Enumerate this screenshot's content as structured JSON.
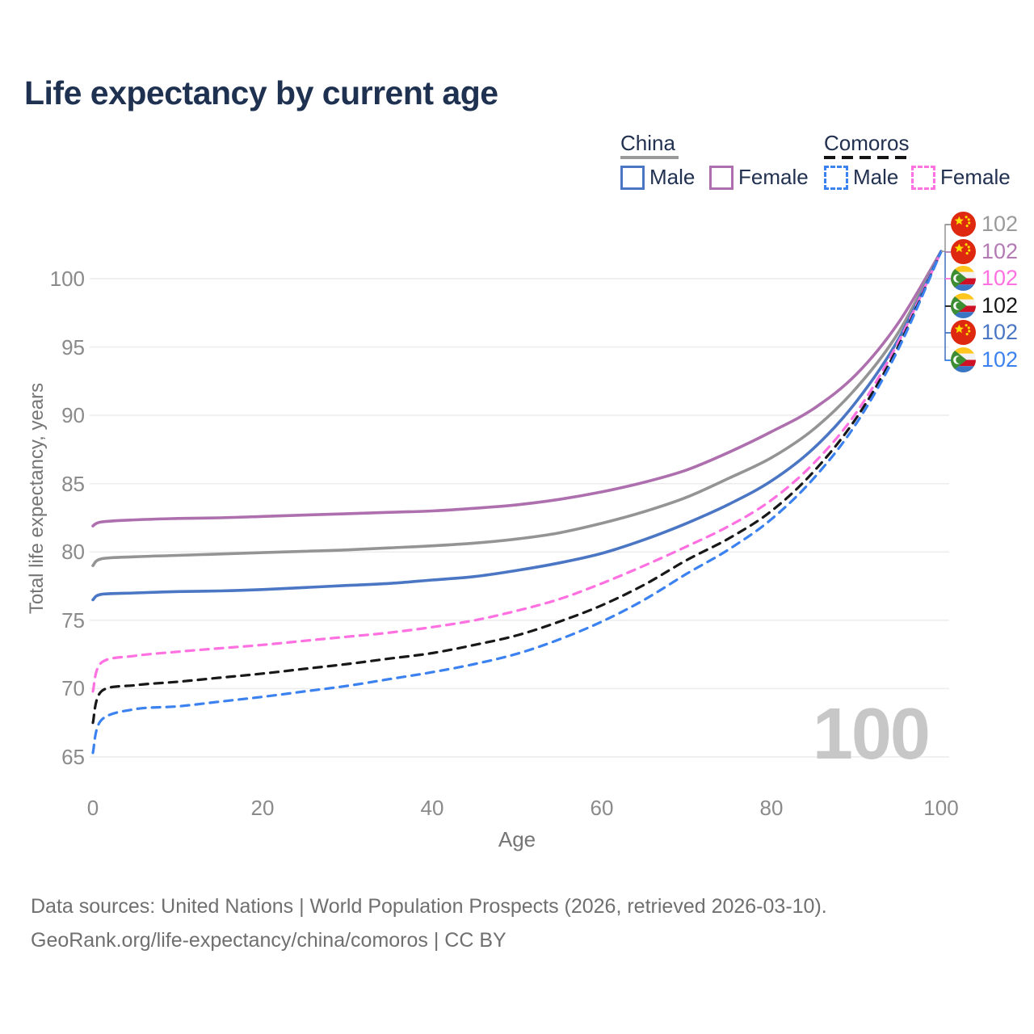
{
  "page": {
    "title": "Life expectancy by current age"
  },
  "legend": {
    "china": {
      "header": "China",
      "male": "Male",
      "female": "Female"
    },
    "comoros": {
      "header": "Comoros",
      "male": "Male",
      "female": "Female"
    }
  },
  "axes": {
    "x_label": "Age",
    "y_label": "Total life expectancy, years"
  },
  "watermark": "100",
  "footer": {
    "line1": "Data sources: United Nations | World Population Prospects (2026, retrieved 2026-03-10).",
    "line2": "GeoRank.org/life-expectancy/china/comoros | CC BY"
  },
  "chart_data": {
    "type": "line",
    "title": "Life expectancy by current age",
    "xlabel": "Age",
    "ylabel": "Total life expectancy, years",
    "xlim": [
      0,
      100
    ],
    "ylim": [
      63.5,
      103
    ],
    "xticks": [
      0,
      20,
      40,
      60,
      80,
      100
    ],
    "yticks": [
      65,
      70,
      75,
      80,
      85,
      90,
      95,
      100
    ],
    "grid": "horizontal",
    "legend_position": "top-right",
    "watermark": "100",
    "series": [
      {
        "key": "china_female",
        "name": "China Female",
        "country": "China",
        "sex": "Female",
        "color": "#ad6fad",
        "dash": false,
        "width": 3.6,
        "points": [
          [
            0,
            81.9
          ],
          [
            1,
            82.2
          ],
          [
            5,
            82.35
          ],
          [
            10,
            82.45
          ],
          [
            15,
            82.5
          ],
          [
            20,
            82.6
          ],
          [
            25,
            82.7
          ],
          [
            30,
            82.8
          ],
          [
            35,
            82.9
          ],
          [
            40,
            83.0
          ],
          [
            45,
            83.2
          ],
          [
            50,
            83.45
          ],
          [
            55,
            83.85
          ],
          [
            60,
            84.4
          ],
          [
            65,
            85.1
          ],
          [
            70,
            86.0
          ],
          [
            75,
            87.3
          ],
          [
            80,
            88.8
          ],
          [
            85,
            90.5
          ],
          [
            90,
            93.0
          ],
          [
            95,
            96.8
          ],
          [
            100,
            102
          ]
        ]
      },
      {
        "key": "china_both",
        "name": "China",
        "country": "China",
        "sex": "Both",
        "color": "#949494",
        "dash": false,
        "width": 3.6,
        "points": [
          [
            0,
            79.0
          ],
          [
            1,
            79.5
          ],
          [
            5,
            79.65
          ],
          [
            10,
            79.75
          ],
          [
            15,
            79.85
          ],
          [
            20,
            79.95
          ],
          [
            25,
            80.05
          ],
          [
            30,
            80.15
          ],
          [
            35,
            80.3
          ],
          [
            40,
            80.45
          ],
          [
            45,
            80.65
          ],
          [
            50,
            80.95
          ],
          [
            55,
            81.4
          ],
          [
            60,
            82.1
          ],
          [
            65,
            82.95
          ],
          [
            70,
            84.0
          ],
          [
            75,
            85.4
          ],
          [
            80,
            86.9
          ],
          [
            85,
            89.0
          ],
          [
            90,
            92.0
          ],
          [
            95,
            96.1
          ],
          [
            100,
            102
          ]
        ]
      },
      {
        "key": "china_male",
        "name": "China Male",
        "country": "China",
        "sex": "Male",
        "color": "#4a76c4",
        "dash": false,
        "width": 3.6,
        "points": [
          [
            0,
            76.5
          ],
          [
            1,
            76.9
          ],
          [
            5,
            77.0
          ],
          [
            10,
            77.1
          ],
          [
            15,
            77.15
          ],
          [
            20,
            77.25
          ],
          [
            25,
            77.4
          ],
          [
            30,
            77.55
          ],
          [
            35,
            77.7
          ],
          [
            40,
            77.95
          ],
          [
            45,
            78.2
          ],
          [
            50,
            78.65
          ],
          [
            55,
            79.2
          ],
          [
            60,
            79.9
          ],
          [
            65,
            80.9
          ],
          [
            70,
            82.1
          ],
          [
            75,
            83.5
          ],
          [
            80,
            85.2
          ],
          [
            85,
            87.6
          ],
          [
            90,
            91.0
          ],
          [
            95,
            95.6
          ],
          [
            100,
            102
          ]
        ]
      },
      {
        "key": "comoros_female",
        "name": "Comoros Female",
        "country": "Comoros",
        "sex": "Female",
        "color": "#ff70e1",
        "dash": true,
        "width": 3.2,
        "points": [
          [
            0,
            69.8
          ],
          [
            1,
            71.9
          ],
          [
            5,
            72.4
          ],
          [
            10,
            72.7
          ],
          [
            15,
            72.95
          ],
          [
            20,
            73.2
          ],
          [
            25,
            73.5
          ],
          [
            30,
            73.8
          ],
          [
            35,
            74.1
          ],
          [
            40,
            74.5
          ],
          [
            45,
            75.0
          ],
          [
            50,
            75.7
          ],
          [
            55,
            76.55
          ],
          [
            60,
            77.7
          ],
          [
            65,
            79.0
          ],
          [
            70,
            80.4
          ],
          [
            75,
            81.9
          ],
          [
            80,
            83.8
          ],
          [
            85,
            86.5
          ],
          [
            90,
            90.2
          ],
          [
            95,
            95.4
          ],
          [
            100,
            102
          ]
        ]
      },
      {
        "key": "comoros_both",
        "name": "Comoros",
        "country": "Comoros",
        "sex": "Both",
        "color": "#181818",
        "dash": true,
        "width": 3.2,
        "points": [
          [
            0,
            67.5
          ],
          [
            1,
            69.8
          ],
          [
            5,
            70.25
          ],
          [
            10,
            70.5
          ],
          [
            15,
            70.8
          ],
          [
            20,
            71.1
          ],
          [
            25,
            71.45
          ],
          [
            30,
            71.8
          ],
          [
            35,
            72.2
          ],
          [
            40,
            72.6
          ],
          [
            45,
            73.2
          ],
          [
            50,
            73.9
          ],
          [
            55,
            74.9
          ],
          [
            60,
            76.1
          ],
          [
            65,
            77.6
          ],
          [
            70,
            79.4
          ],
          [
            75,
            81.0
          ],
          [
            80,
            83.0
          ],
          [
            85,
            85.9
          ],
          [
            90,
            89.8
          ],
          [
            95,
            95.1
          ],
          [
            100,
            102
          ]
        ]
      },
      {
        "key": "comoros_male",
        "name": "Comoros Male",
        "country": "Comoros",
        "sex": "Male",
        "color": "#3b82f0",
        "dash": true,
        "width": 3.2,
        "points": [
          [
            0,
            65.3
          ],
          [
            1,
            67.7
          ],
          [
            5,
            68.5
          ],
          [
            10,
            68.7
          ],
          [
            15,
            69.05
          ],
          [
            20,
            69.4
          ],
          [
            25,
            69.8
          ],
          [
            30,
            70.2
          ],
          [
            35,
            70.7
          ],
          [
            40,
            71.2
          ],
          [
            45,
            71.8
          ],
          [
            50,
            72.55
          ],
          [
            55,
            73.6
          ],
          [
            60,
            74.9
          ],
          [
            65,
            76.5
          ],
          [
            70,
            78.4
          ],
          [
            75,
            80.2
          ],
          [
            80,
            82.4
          ],
          [
            85,
            85.4
          ],
          [
            90,
            89.4
          ],
          [
            95,
            94.9
          ],
          [
            100,
            102
          ]
        ]
      }
    ],
    "end_labels": [
      {
        "flag": "china",
        "series": "china_both",
        "value": "102",
        "color": "#9a9a9a"
      },
      {
        "flag": "china",
        "series": "china_female",
        "value": "102",
        "color": "#b47ab4"
      },
      {
        "flag": "comoros",
        "series": "comoros_female",
        "value": "102",
        "color": "#ff70e1"
      },
      {
        "flag": "comoros",
        "series": "comoros_both",
        "value": "102",
        "color": "#181818"
      },
      {
        "flag": "china",
        "series": "china_male",
        "value": "102",
        "color": "#4a76c4"
      },
      {
        "flag": "comoros",
        "series": "comoros_male",
        "value": "102",
        "color": "#3b82f0"
      }
    ],
    "grid_color": "#ececec"
  }
}
